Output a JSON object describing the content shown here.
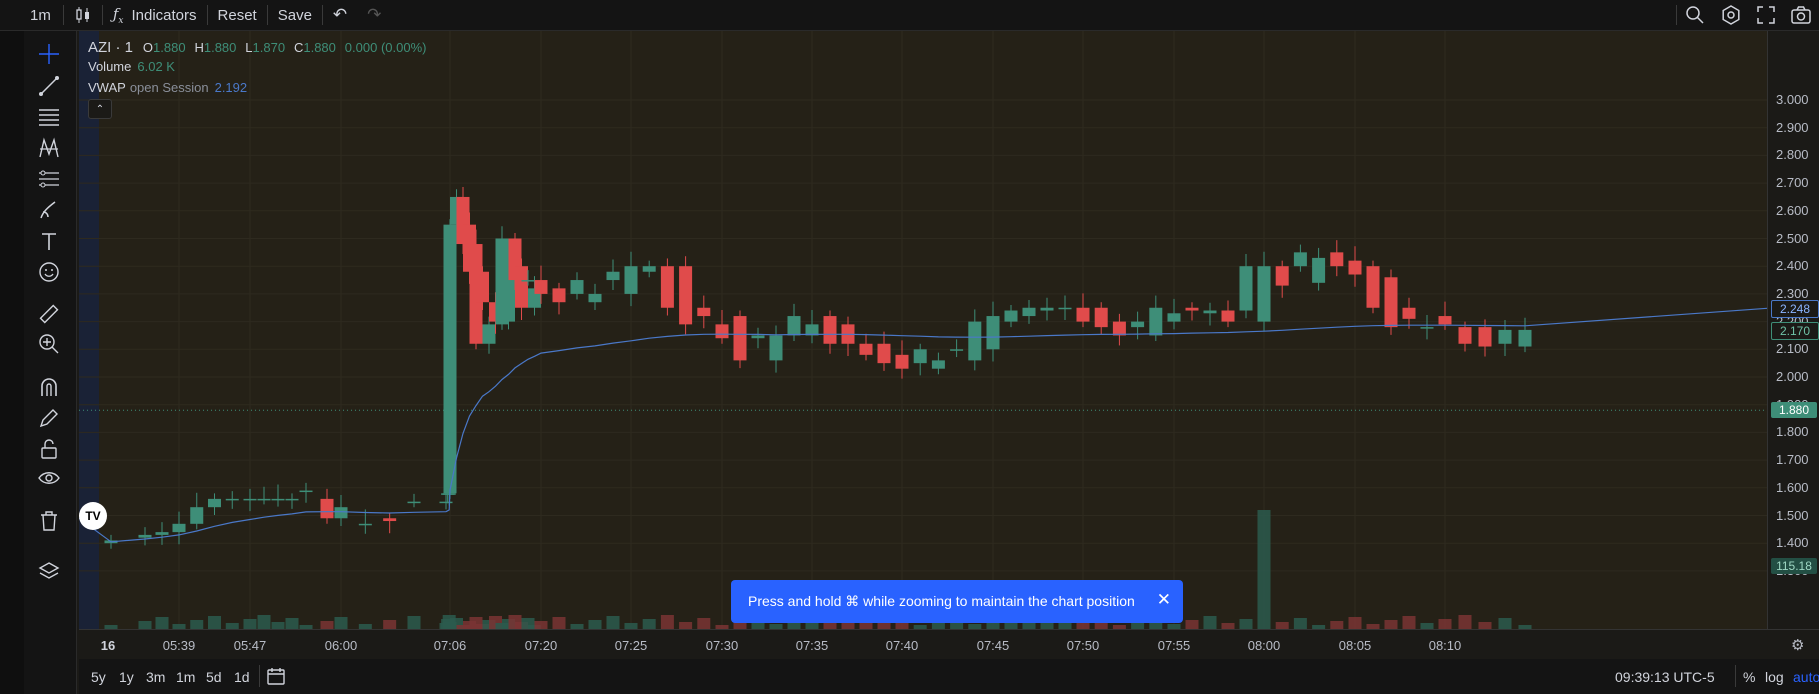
{
  "toolbar": {
    "interval": "1m",
    "indicators_label": "Indicators",
    "reset_label": "Reset",
    "save_label": "Save"
  },
  "legend": {
    "symbol": "AZI · 1",
    "o_label": "O",
    "o": "1.880",
    "h_label": "H",
    "h": "1.880",
    "l_label": "L",
    "l": "1.870",
    "c_label": "C",
    "c": "1.880",
    "change": "0.000 (0.00%)",
    "volume_label": "Volume",
    "volume": "6.02 K",
    "vwap_label": "VWAP",
    "vwap_params": "open Session",
    "vwap": "2.192"
  },
  "price_axis": {
    "ticks": [
      "3.000",
      "2.900",
      "2.800",
      "2.700",
      "2.600",
      "2.500",
      "2.400",
      "2.300",
      "2.200",
      "2.100",
      "2.000",
      "1.900",
      "1.800",
      "1.700",
      "1.600",
      "1.500",
      "1.400",
      "1.300"
    ],
    "vwap_tag": "2.248",
    "last_tag": "2.170",
    "current_tag": "1.880",
    "volume_tag": "115.18"
  },
  "time_axis": {
    "ticks": [
      "16",
      "05:39",
      "05:47",
      "06:00",
      "07:06",
      "07:20",
      "07:25",
      "07:30",
      "07:35",
      "07:40",
      "07:45",
      "07:50",
      "07:55",
      "08:00",
      "08:05",
      "08:10"
    ]
  },
  "bottom": {
    "ranges": [
      "5y",
      "1y",
      "3m",
      "1m",
      "5d",
      "1d"
    ],
    "clock": "09:39:13 UTC-5",
    "percent": "%",
    "log": "log",
    "auto": "auto"
  },
  "toast": {
    "message": "Press and hold ⌘ while zooming to maintain the chart position"
  },
  "colors": {
    "up": "#3e8e78",
    "down": "#e04b4b",
    "vwap": "#4a78c8",
    "accent": "#2962ff"
  },
  "chart_data": {
    "type": "candlestick",
    "symbol": "AZI",
    "interval": "1",
    "x": [
      "05:31",
      "05:35",
      "05:37",
      "05:39",
      "05:41",
      "05:43",
      "05:45",
      "05:47",
      "05:49",
      "05:51",
      "05:53",
      "05:55",
      "05:58",
      "06:00",
      "06:02",
      "06:04",
      "06:06",
      "07:01",
      "07:03",
      "07:05",
      "07:06",
      "07:07",
      "07:08",
      "07:09",
      "07:10",
      "07:11",
      "07:12",
      "07:13",
      "07:14",
      "07:15",
      "07:16",
      "07:17",
      "07:18",
      "07:19",
      "07:20",
      "07:21",
      "07:22",
      "07:23",
      "07:24",
      "07:25",
      "07:26",
      "07:27",
      "07:28",
      "07:29",
      "07:30",
      "07:31",
      "07:32",
      "07:33",
      "07:34",
      "07:35",
      "07:36",
      "07:37",
      "07:38",
      "07:39",
      "07:40",
      "07:41",
      "07:42",
      "07:43",
      "07:44",
      "07:45",
      "07:46",
      "07:47",
      "07:48",
      "07:49",
      "07:50",
      "07:51",
      "07:52",
      "07:53",
      "07:54",
      "07:55",
      "07:56",
      "07:57",
      "07:58",
      "07:59",
      "08:00",
      "08:01",
      "08:02",
      "08:03",
      "08:04",
      "08:05",
      "08:06",
      "08:07",
      "08:08",
      "08:09",
      "08:10",
      "08:11",
      "08:12",
      "08:13",
      "08:14"
    ],
    "open": [
      1.4,
      1.42,
      1.43,
      1.44,
      1.47,
      1.53,
      1.56,
      1.56,
      1.56,
      1.56,
      1.56,
      1.59,
      1.56,
      1.49,
      1.47,
      1.49,
      1.55,
      1.55,
      1.58,
      1.58,
      1.58,
      2.55,
      2.65,
      2.55,
      2.48,
      2.38,
      2.12,
      2.27,
      2.19,
      2.2,
      2.5,
      2.4,
      2.35,
      2.25,
      2.35,
      2.32,
      2.3,
      2.27,
      2.35,
      2.3,
      2.38,
      2.4,
      2.4,
      2.25,
      2.19,
      2.22,
      2.14,
      2.06,
      2.15,
      2.15,
      2.22,
      2.19,
      2.12,
      2.12,
      2.08,
      2.05,
      2.03,
      2.1,
      2.06,
      2.1,
      2.2,
      2.22,
      2.24,
      2.25,
      2.25,
      2.25,
      2.2,
      2.18,
      2.15,
      2.2,
      2.25,
      2.23,
      2.24,
      2.24,
      2.2,
      2.4,
      2.4,
      2.34,
      2.45,
      2.42,
      2.4,
      2.36,
      2.25,
      2.18,
      2.22,
      2.18,
      2.18,
      2.12,
      2.11
    ],
    "close": [
      1.41,
      1.43,
      1.44,
      1.47,
      1.53,
      1.56,
      1.56,
      1.56,
      1.56,
      1.56,
      1.56,
      1.59,
      1.49,
      1.53,
      1.47,
      1.48,
      1.55,
      1.55,
      1.58,
      1.58,
      2.55,
      2.65,
      2.48,
      2.38,
      2.12,
      2.27,
      2.19,
      2.2,
      2.5,
      2.4,
      2.35,
      2.25,
      2.35,
      2.32,
      2.3,
      2.27,
      2.35,
      2.3,
      2.38,
      2.4,
      2.4,
      2.25,
      2.19,
      2.22,
      2.14,
      2.06,
      2.15,
      2.15,
      2.22,
      2.19,
      2.12,
      2.12,
      2.08,
      2.05,
      2.03,
      2.1,
      2.06,
      2.1,
      2.2,
      2.22,
      2.24,
      2.25,
      2.25,
      2.25,
      2.2,
      2.18,
      2.15,
      2.2,
      2.25,
      2.23,
      2.24,
      2.24,
      2.2,
      2.4,
      2.4,
      2.33,
      2.45,
      2.43,
      2.4,
      2.37,
      2.25,
      2.18,
      2.21,
      2.18,
      2.19,
      2.12,
      2.11,
      2.17,
      2.17
    ]
  }
}
